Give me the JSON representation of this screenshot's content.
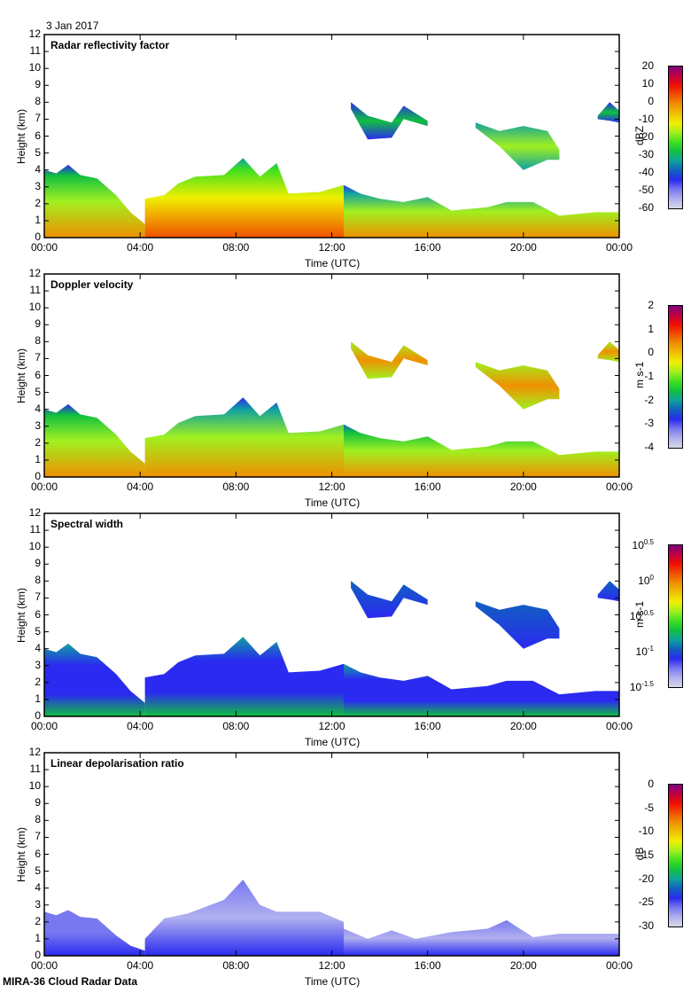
{
  "date": "3 Jan 2017",
  "footer": "MIRA-36 Cloud Radar Data",
  "colors": {
    "colormap": [
      "#d8d8e8",
      "#b0b0f0",
      "#7878f0",
      "#2a2af0",
      "#1060c0",
      "#10a0a0",
      "#10c040",
      "#40e020",
      "#a0f020",
      "#f0f000",
      "#f0c000",
      "#f09000",
      "#f05000",
      "#f01000",
      "#c00040",
      "#800080"
    ]
  },
  "chart_data": [
    {
      "type": "heatmap",
      "title": "Radar reflectivity factor",
      "xlabel": "Time (UTC)",
      "ylabel": "Height (km)",
      "xticks": [
        "00:00",
        "04:00",
        "08:00",
        "12:00",
        "16:00",
        "20:00",
        "00:00"
      ],
      "yticks": [
        "0",
        "1",
        "2",
        "3",
        "4",
        "5",
        "6",
        "7",
        "8",
        "9",
        "10",
        "11",
        "12"
      ],
      "xlim": [
        0,
        24
      ],
      "ylim": [
        0,
        12
      ],
      "colorbar": {
        "label": "dBZ",
        "ticks": [
          "20",
          "10",
          "0",
          "-10",
          "-20",
          "-30",
          "-40",
          "-50",
          "-60"
        ],
        "range": [
          -60,
          20
        ]
      },
      "regions": [
        {
          "name": "low-cloud-0-4h",
          "level": 0.55,
          "top": [
            [
              0,
              4.0
            ],
            [
              0.5,
              3.8
            ],
            [
              1,
              4.3
            ],
            [
              1.5,
              3.7
            ],
            [
              2.2,
              3.5
            ],
            [
              3,
              2.5
            ],
            [
              3.6,
              1.5
            ],
            [
              4.2,
              0.8
            ]
          ]
        },
        {
          "name": "low-cloud-4-12h",
          "level": 0.62,
          "top": [
            [
              4.2,
              2.3
            ],
            [
              5,
              2.5
            ],
            [
              5.6,
              3.2
            ],
            [
              6.3,
              3.6
            ],
            [
              7.5,
              3.7
            ],
            [
              8.3,
              4.7
            ],
            [
              9,
              3.6
            ],
            [
              9.7,
              4.4
            ],
            [
              10.2,
              2.6
            ],
            [
              11.5,
              2.7
            ],
            [
              12.5,
              3.1
            ]
          ]
        },
        {
          "name": "low-cloud-12-24h",
          "level": 0.5,
          "top": [
            [
              12.5,
              3.1
            ],
            [
              13.2,
              2.6
            ],
            [
              14,
              2.3
            ],
            [
              15,
              2.1
            ],
            [
              16,
              2.4
            ],
            [
              17,
              1.6
            ],
            [
              18.5,
              1.8
            ],
            [
              19.3,
              2.1
            ],
            [
              20.4,
              2.1
            ],
            [
              21.5,
              1.3
            ],
            [
              23,
              1.5
            ],
            [
              24,
              1.5
            ]
          ]
        },
        {
          "name": "cirrus-13-16h",
          "level": 0.3,
          "top": [
            [
              12.8,
              8.0
            ],
            [
              13.5,
              7.2
            ],
            [
              14.5,
              6.8
            ],
            [
              15,
              7.8
            ],
            [
              16,
              6.9
            ]
          ],
          "bottom": [
            [
              12.8,
              7.6
            ],
            [
              13.5,
              5.8
            ],
            [
              14.5,
              5.9
            ],
            [
              15,
              7.0
            ],
            [
              16,
              6.6
            ]
          ]
        },
        {
          "name": "cirrus-18-22h",
          "level": 0.42,
          "top": [
            [
              18,
              6.8
            ],
            [
              19,
              6.3
            ],
            [
              20,
              6.6
            ],
            [
              21,
              6.3
            ],
            [
              21.5,
              5.2
            ]
          ],
          "bottom": [
            [
              18,
              6.5
            ],
            [
              19,
              5.4
            ],
            [
              20,
              4.0
            ],
            [
              21,
              4.6
            ],
            [
              21.5,
              4.6
            ]
          ]
        },
        {
          "name": "cirrus-23-24h",
          "level": 0.3,
          "top": [
            [
              23.1,
              7.2
            ],
            [
              23.6,
              8.0
            ],
            [
              24,
              7.5
            ]
          ],
          "bottom": [
            [
              23.1,
              7.0
            ],
            [
              23.6,
              6.9
            ],
            [
              24,
              6.8
            ]
          ]
        }
      ]
    },
    {
      "type": "heatmap",
      "title": "Doppler velocity",
      "xlabel": "Time (UTC)",
      "ylabel": "Height (km)",
      "xticks": [
        "00:00",
        "04:00",
        "08:00",
        "12:00",
        "16:00",
        "20:00",
        "00:00"
      ],
      "yticks": [
        "0",
        "1",
        "2",
        "3",
        "4",
        "5",
        "6",
        "7",
        "8",
        "9",
        "10",
        "11",
        "12"
      ],
      "xlim": [
        0,
        24
      ],
      "ylim": [
        0,
        12
      ],
      "colorbar": {
        "label": "m s-1",
        "ticks": [
          "2",
          "1",
          "0",
          "-1",
          "-2",
          "-3",
          "-4"
        ],
        "range": [
          -4,
          2
        ]
      },
      "regions": [
        {
          "name": "low-cloud-0-4h",
          "level": 0.52,
          "top": [
            [
              0,
              4.0
            ],
            [
              0.5,
              3.8
            ],
            [
              1,
              4.3
            ],
            [
              1.5,
              3.7
            ],
            [
              2.2,
              3.5
            ],
            [
              3,
              2.5
            ],
            [
              3.6,
              1.5
            ],
            [
              4.2,
              0.8
            ]
          ]
        },
        {
          "name": "low-cloud-4-12h",
          "level": 0.5,
          "top": [
            [
              4.2,
              2.3
            ],
            [
              5,
              2.5
            ],
            [
              5.6,
              3.2
            ],
            [
              6.3,
              3.6
            ],
            [
              7.5,
              3.7
            ],
            [
              8.3,
              4.7
            ],
            [
              9,
              3.6
            ],
            [
              9.7,
              4.4
            ],
            [
              10.2,
              2.6
            ],
            [
              11.5,
              2.7
            ],
            [
              12.5,
              3.1
            ]
          ]
        },
        {
          "name": "low-cloud-12-24h",
          "level": 0.56,
          "top": [
            [
              12.5,
              3.1
            ],
            [
              13.2,
              2.6
            ],
            [
              14,
              2.3
            ],
            [
              15,
              2.1
            ],
            [
              16,
              2.4
            ],
            [
              17,
              1.6
            ],
            [
              18.5,
              1.8
            ],
            [
              19.3,
              2.1
            ],
            [
              20.4,
              2.1
            ],
            [
              21.5,
              1.3
            ],
            [
              23,
              1.5
            ],
            [
              24,
              1.5
            ]
          ]
        },
        {
          "name": "cirrus-13-16h",
          "level": 0.62,
          "top": [
            [
              12.8,
              8.0
            ],
            [
              13.5,
              7.2
            ],
            [
              14.5,
              6.8
            ],
            [
              15,
              7.8
            ],
            [
              16,
              6.9
            ]
          ],
          "bottom": [
            [
              12.8,
              7.6
            ],
            [
              13.5,
              5.8
            ],
            [
              14.5,
              5.9
            ],
            [
              15,
              7.0
            ],
            [
              16,
              6.6
            ]
          ]
        },
        {
          "name": "cirrus-18-22h",
          "level": 0.62,
          "top": [
            [
              18,
              6.8
            ],
            [
              19,
              6.3
            ],
            [
              20,
              6.6
            ],
            [
              21,
              6.3
            ],
            [
              21.5,
              5.2
            ]
          ],
          "bottom": [
            [
              18,
              6.5
            ],
            [
              19,
              5.4
            ],
            [
              20,
              4.0
            ],
            [
              21,
              4.6
            ],
            [
              21.5,
              4.6
            ]
          ]
        },
        {
          "name": "cirrus-23-24h",
          "level": 0.6,
          "top": [
            [
              23.1,
              7.2
            ],
            [
              23.6,
              8.0
            ],
            [
              24,
              7.5
            ]
          ],
          "bottom": [
            [
              23.1,
              7.0
            ],
            [
              23.6,
              6.9
            ],
            [
              24,
              6.8
            ]
          ]
        }
      ]
    },
    {
      "type": "heatmap",
      "title": "Spectral width",
      "xlabel": "Time (UTC)",
      "ylabel": "Height (km)",
      "xticks": [
        "00:00",
        "04:00",
        "08:00",
        "12:00",
        "16:00",
        "20:00",
        "00:00"
      ],
      "yticks": [
        "0",
        "1",
        "2",
        "3",
        "4",
        "5",
        "6",
        "7",
        "8",
        "9",
        "10",
        "11",
        "12"
      ],
      "xlim": [
        0,
        24
      ],
      "ylim": [
        0,
        12
      ],
      "colorbar": {
        "label": "m s-1",
        "ticks": [
          [
            "10",
            "0.5"
          ],
          [
            "10",
            "0"
          ],
          [
            "10",
            "-0.5"
          ],
          [
            "10",
            "-1"
          ],
          [
            "10",
            "-1.5"
          ]
        ],
        "range": [
          -1.5,
          0.5
        ],
        "scale": "log10"
      },
      "regions": [
        {
          "name": "low-cloud-0-4h",
          "level": 0.22,
          "top": [
            [
              0,
              4.0
            ],
            [
              0.5,
              3.8
            ],
            [
              1,
              4.3
            ],
            [
              1.5,
              3.7
            ],
            [
              2.2,
              3.5
            ],
            [
              3,
              2.5
            ],
            [
              3.6,
              1.5
            ],
            [
              4.2,
              0.8
            ]
          ]
        },
        {
          "name": "low-cloud-4-12h",
          "level": 0.3,
          "top": [
            [
              4.2,
              2.3
            ],
            [
              5,
              2.5
            ],
            [
              5.6,
              3.2
            ],
            [
              6.3,
              3.6
            ],
            [
              7.5,
              3.7
            ],
            [
              8.3,
              4.7
            ],
            [
              9,
              3.6
            ],
            [
              9.7,
              4.4
            ],
            [
              10.2,
              2.6
            ],
            [
              11.5,
              2.7
            ],
            [
              12.5,
              3.1
            ]
          ]
        },
        {
          "name": "low-cloud-12-24h",
          "level": 0.25,
          "top": [
            [
              12.5,
              3.1
            ],
            [
              13.2,
              2.6
            ],
            [
              14,
              2.3
            ],
            [
              15,
              2.1
            ],
            [
              16,
              2.4
            ],
            [
              17,
              1.6
            ],
            [
              18.5,
              1.8
            ],
            [
              19.3,
              2.1
            ],
            [
              20.4,
              2.1
            ],
            [
              21.5,
              1.3
            ],
            [
              23,
              1.5
            ],
            [
              24,
              1.5
            ]
          ]
        },
        {
          "name": "cirrus-13-16h",
          "level": 0.22,
          "top": [
            [
              12.8,
              8.0
            ],
            [
              13.5,
              7.2
            ],
            [
              14.5,
              6.8
            ],
            [
              15,
              7.8
            ],
            [
              16,
              6.9
            ]
          ],
          "bottom": [
            [
              12.8,
              7.6
            ],
            [
              13.5,
              5.8
            ],
            [
              14.5,
              5.9
            ],
            [
              15,
              7.0
            ],
            [
              16,
              6.6
            ]
          ]
        },
        {
          "name": "cirrus-18-22h",
          "level": 0.22,
          "top": [
            [
              18,
              6.8
            ],
            [
              19,
              6.3
            ],
            [
              20,
              6.6
            ],
            [
              21,
              6.3
            ],
            [
              21.5,
              5.2
            ]
          ],
          "bottom": [
            [
              18,
              6.5
            ],
            [
              19,
              5.4
            ],
            [
              20,
              4.0
            ],
            [
              21,
              4.6
            ],
            [
              21.5,
              4.6
            ]
          ]
        },
        {
          "name": "cirrus-23-24h",
          "level": 0.22,
          "top": [
            [
              23.1,
              7.2
            ],
            [
              23.6,
              8.0
            ],
            [
              24,
              7.5
            ]
          ],
          "bottom": [
            [
              23.1,
              7.0
            ],
            [
              23.6,
              6.9
            ],
            [
              24,
              6.8
            ]
          ]
        }
      ]
    },
    {
      "type": "heatmap",
      "title": "Linear depolarisation ratio",
      "xlabel": "Time (UTC)",
      "ylabel": "Height (km)",
      "xticks": [
        "00:00",
        "04:00",
        "08:00",
        "12:00",
        "16:00",
        "20:00",
        "00:00"
      ],
      "yticks": [
        "0",
        "1",
        "2",
        "3",
        "4",
        "5",
        "6",
        "7",
        "8",
        "9",
        "10",
        "11",
        "12"
      ],
      "xlim": [
        0,
        24
      ],
      "ylim": [
        0,
        12
      ],
      "colorbar": {
        "label": "dB",
        "ticks": [
          "0",
          "-5",
          "-10",
          "-15",
          "-20",
          "-25",
          "-30"
        ],
        "range": [
          -30,
          0
        ]
      },
      "regions": [
        {
          "name": "low-cloud-0-4h",
          "level": 0.12,
          "top": [
            [
              0,
              2.6
            ],
            [
              0.5,
              2.4
            ],
            [
              1,
              2.7
            ],
            [
              1.5,
              2.3
            ],
            [
              2.2,
              2.2
            ],
            [
              3,
              1.2
            ],
            [
              3.6,
              0.6
            ],
            [
              4.2,
              0.3
            ]
          ]
        },
        {
          "name": "low-cloud-4-12h",
          "level": 0.04,
          "top": [
            [
              4.2,
              1.0
            ],
            [
              5,
              2.2
            ],
            [
              6,
              2.5
            ],
            [
              7.5,
              3.3
            ],
            [
              8.3,
              4.5
            ],
            [
              9,
              3.0
            ],
            [
              9.7,
              2.6
            ],
            [
              11.5,
              2.6
            ],
            [
              12.5,
              2.0
            ]
          ]
        },
        {
          "name": "low-cloud-12-24h",
          "level": 0.06,
          "top": [
            [
              12.5,
              1.6
            ],
            [
              13.5,
              1.0
            ],
            [
              14.5,
              1.5
            ],
            [
              15.5,
              1.0
            ],
            [
              17,
              1.4
            ],
            [
              18.5,
              1.6
            ],
            [
              19.3,
              2.1
            ],
            [
              20.4,
              1.1
            ],
            [
              21.5,
              1.3
            ],
            [
              23,
              1.3
            ],
            [
              24,
              1.3
            ]
          ]
        }
      ]
    }
  ]
}
